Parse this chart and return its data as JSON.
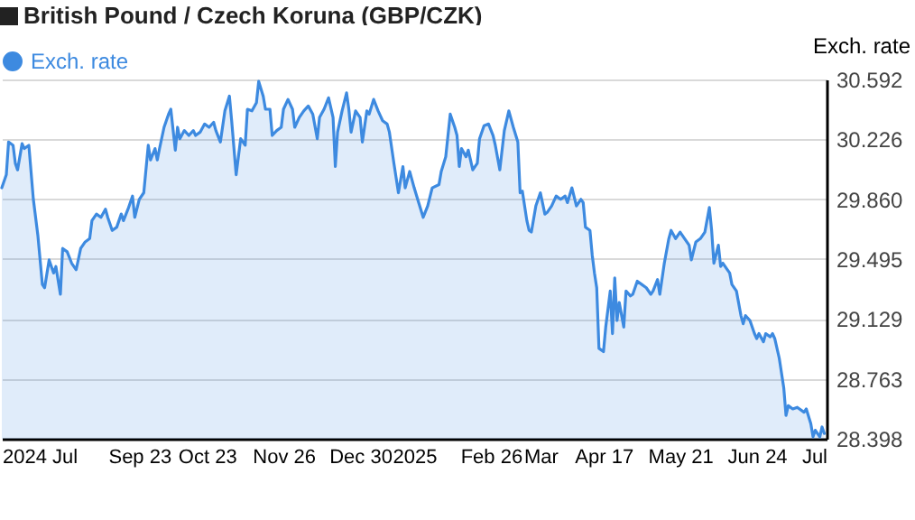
{
  "chart_data": {
    "type": "area",
    "title": "British Pound / Czech Koruna (GBP/CZK)",
    "ylabel": "Exch. rate",
    "x": [
      "2024-07-24",
      "2024-07-26",
      "2024-07-27",
      "2024-07-29",
      "2024-07-30",
      "2024-07-31",
      "2024-08-02",
      "2024-08-03",
      "2024-08-05",
      "2024-08-07",
      "2024-08-09",
      "2024-08-11",
      "2024-08-12",
      "2024-08-14",
      "2024-08-16",
      "2024-08-17",
      "2024-08-19",
      "2024-08-20",
      "2024-08-22",
      "2024-08-24",
      "2024-08-26",
      "2024-08-28",
      "2024-08-30",
      "2024-09-01",
      "2024-09-02",
      "2024-09-04",
      "2024-09-06",
      "2024-09-08",
      "2024-09-09",
      "2024-09-11",
      "2024-09-13",
      "2024-09-15",
      "2024-09-16",
      "2024-09-18",
      "2024-09-20",
      "2024-09-21",
      "2024-09-23",
      "2024-09-25",
      "2024-09-27",
      "2024-09-28",
      "2024-09-30",
      "2024-10-01",
      "2024-10-02",
      "2024-10-04",
      "2024-10-06",
      "2024-10-07",
      "2024-10-09",
      "2024-10-10",
      "2024-10-11",
      "2024-10-13",
      "2024-10-15",
      "2024-10-17",
      "2024-10-18",
      "2024-10-20",
      "2024-10-22",
      "2024-10-24",
      "2024-10-26",
      "2024-10-27",
      "2024-10-29",
      "2024-10-31",
      "2024-11-02",
      "2024-11-03",
      "2024-11-05",
      "2024-11-07",
      "2024-11-09",
      "2024-11-10",
      "2024-11-12",
      "2024-11-14",
      "2024-11-15",
      "2024-11-17",
      "2024-11-18",
      "2024-11-20",
      "2024-11-21",
      "2024-11-23",
      "2024-11-25",
      "2024-11-26",
      "2024-11-28",
      "2024-11-30",
      "2024-12-01",
      "2024-12-03",
      "2024-12-05",
      "2024-12-07",
      "2024-12-09",
      "2024-12-11",
      "2024-12-12",
      "2024-12-14",
      "2024-12-16",
      "2024-12-18",
      "2024-12-19",
      "2024-12-20",
      "2024-12-22",
      "2024-12-24",
      "2024-12-25",
      "2024-12-26",
      "2024-12-28",
      "2024-12-30",
      "2024-12-31",
      "2025-01-02",
      "2025-01-03",
      "2025-01-05",
      "2025-01-07",
      "2025-01-09",
      "2025-01-11",
      "2025-01-12",
      "2025-01-14",
      "2025-01-16",
      "2025-01-18",
      "2025-01-19",
      "2025-01-21",
      "2025-01-23",
      "2025-01-25",
      "2025-01-27",
      "2025-01-29",
      "2025-01-31",
      "2025-02-03",
      "2025-02-04",
      "2025-02-06",
      "2025-02-08",
      "2025-02-10",
      "2025-02-11",
      "2025-02-12",
      "2025-02-13",
      "2025-02-15",
      "2025-02-16",
      "2025-02-18",
      "2025-02-20",
      "2025-02-21",
      "2025-02-23",
      "2025-02-25",
      "2025-02-27",
      "2025-02-28",
      "2025-03-02",
      "2025-03-04",
      "2025-03-06",
      "2025-03-08",
      "2025-03-10",
      "2025-03-11",
      "2025-03-12",
      "2025-03-14",
      "2025-03-15",
      "2025-03-16",
      "2025-03-18",
      "2025-03-20",
      "2025-03-22",
      "2025-03-23",
      "2025-03-25",
      "2025-03-27",
      "2025-03-29",
      "2025-03-31",
      "2025-04-01",
      "2025-04-03",
      "2025-04-05",
      "2025-04-07",
      "2025-04-08",
      "2025-04-09",
      "2025-04-11",
      "2025-04-12",
      "2025-04-13",
      "2025-04-14",
      "2025-04-15",
      "2025-04-17",
      "2025-04-18",
      "2025-04-20",
      "2025-04-21",
      "2025-04-22",
      "2025-04-23",
      "2025-04-24",
      "2025-04-26",
      "2025-04-27",
      "2025-04-29",
      "2025-04-30",
      "2025-05-02",
      "2025-05-04",
      "2025-05-06",
      "2025-05-08",
      "2025-05-09",
      "2025-05-11",
      "2025-05-12",
      "2025-05-14",
      "2025-05-16",
      "2025-05-17",
      "2025-05-19",
      "2025-05-21",
      "2025-05-23",
      "2025-05-25",
      "2025-05-26",
      "2025-05-28",
      "2025-05-30",
      "2025-06-01",
      "2025-06-03",
      "2025-06-04",
      "2025-06-05",
      "2025-06-07",
      "2025-06-08",
      "2025-06-09",
      "2025-06-11",
      "2025-06-12",
      "2025-06-13",
      "2025-06-15",
      "2025-06-17",
      "2025-06-18",
      "2025-06-19",
      "2025-06-21",
      "2025-06-23",
      "2025-06-24",
      "2025-06-25",
      "2025-06-27",
      "2025-06-28",
      "2025-06-30",
      "2025-07-01",
      "2025-07-02",
      "2025-07-04",
      "2025-07-06",
      "2025-07-07",
      "2025-07-08",
      "2025-07-10",
      "2025-07-12",
      "2025-07-15",
      "2025-07-16",
      "2025-07-18",
      "2025-07-19",
      "2025-07-20",
      "2025-07-22",
      "2025-07-23",
      "2025-07-24"
    ],
    "series": [
      {
        "name": "Exch. rate",
        "color": "#3d8ae0",
        "values": [
          29.93,
          30.01,
          30.21,
          30.19,
          30.08,
          30.04,
          30.2,
          30.17,
          30.19,
          29.86,
          29.64,
          29.34,
          29.32,
          29.49,
          29.41,
          29.45,
          29.28,
          29.56,
          29.54,
          29.47,
          29.43,
          29.56,
          29.6,
          29.62,
          29.73,
          29.77,
          29.75,
          29.8,
          29.75,
          29.67,
          29.69,
          29.77,
          29.73,
          29.8,
          29.88,
          29.75,
          29.86,
          29.9,
          30.19,
          30.1,
          30.17,
          30.1,
          30.17,
          30.3,
          30.38,
          30.41,
          30.16,
          30.3,
          30.23,
          30.28,
          30.25,
          30.28,
          30.25,
          30.27,
          30.32,
          30.3,
          30.33,
          30.28,
          30.21,
          30.4,
          30.49,
          30.34,
          30.01,
          30.23,
          30.19,
          30.41,
          30.4,
          30.45,
          30.58,
          30.49,
          30.41,
          30.41,
          30.25,
          30.28,
          30.3,
          30.41,
          30.47,
          30.41,
          30.3,
          30.36,
          30.4,
          30.43,
          30.38,
          30.23,
          30.36,
          30.41,
          30.48,
          30.36,
          30.06,
          30.27,
          30.4,
          30.51,
          30.41,
          30.27,
          30.4,
          30.36,
          30.21,
          30.4,
          30.38,
          30.47,
          30.4,
          30.34,
          30.32,
          30.27,
          30.08,
          29.9,
          30.06,
          29.93,
          30.03,
          29.93,
          29.84,
          29.75,
          29.82,
          29.93,
          29.95,
          30.03,
          30.12,
          30.38,
          30.3,
          30.25,
          30.06,
          30.17,
          30.12,
          30.16,
          30.04,
          30.08,
          30.23,
          30.31,
          30.32,
          30.25,
          30.19,
          30.04,
          30.28,
          30.4,
          30.3,
          30.21,
          29.9,
          29.91,
          29.73,
          29.67,
          29.66,
          29.82,
          29.9,
          29.77,
          29.78,
          29.82,
          29.88,
          29.86,
          29.88,
          29.84,
          29.93,
          29.82,
          29.86,
          29.84,
          29.69,
          29.67,
          29.52,
          29.41,
          29.32,
          28.95,
          28.93,
          29.08,
          29.3,
          29.04,
          29.38,
          29.12,
          29.23,
          29.08,
          29.3,
          29.27,
          29.28,
          29.36,
          29.34,
          29.32,
          29.28,
          29.3,
          29.37,
          29.28,
          29.47,
          29.62,
          29.67,
          29.62,
          29.66,
          29.62,
          29.58,
          29.49,
          29.6,
          29.62,
          29.66,
          29.81,
          29.67,
          29.47,
          29.58,
          29.45,
          29.47,
          29.43,
          29.41,
          29.34,
          29.3,
          29.15,
          29.1,
          29.15,
          29.12,
          29.04,
          29.01,
          29.04,
          28.99,
          29.04,
          29.02,
          29.04,
          29.01,
          28.89,
          28.71,
          28.54,
          28.6,
          28.58,
          28.59,
          28.56,
          28.58,
          28.49,
          28.41,
          28.45,
          28.41,
          28.47,
          28.43
        ]
      }
    ],
    "xlim": [
      "2024-07-24",
      "2025-07-25"
    ],
    "xticks": [
      {
        "value": "2024-07-24",
        "label": "2024 Jul"
      },
      {
        "value": "2024-09-23",
        "label": "Sep 23"
      },
      {
        "value": "2024-10-23",
        "label": "Oct 23"
      },
      {
        "value": "2024-11-26",
        "label": "Nov 26"
      },
      {
        "value": "2024-12-30",
        "label": "Dec 30"
      },
      {
        "value": "2025-01-23",
        "label": "2025"
      },
      {
        "value": "2025-02-26",
        "label": "Feb 26"
      },
      {
        "value": "2025-03-20",
        "label": "Mar"
      },
      {
        "value": "2025-04-17",
        "label": "Apr 17"
      },
      {
        "value": "2025-05-21",
        "label": "May 21"
      },
      {
        "value": "2025-06-24",
        "label": "Jun 24"
      },
      {
        "value": "2025-07-25",
        "label": "Jul"
      }
    ],
    "ylim": [
      28.398,
      30.592
    ],
    "yticks": [
      28.398,
      28.763,
      29.129,
      29.495,
      {
        "value": 29.86,
        "label": "29.860"
      },
      30.226,
      30.592
    ],
    "grid": "y",
    "legend": "top left"
  }
}
